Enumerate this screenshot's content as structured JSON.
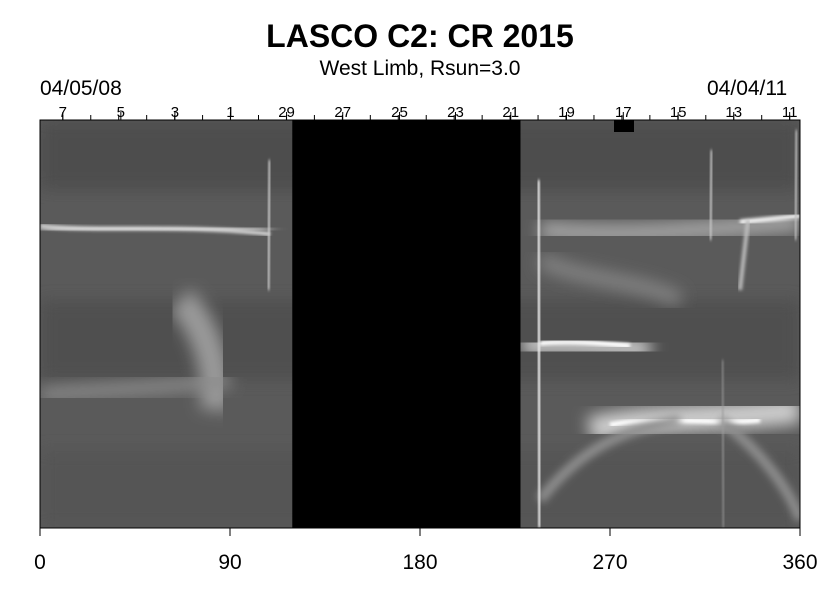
{
  "title": "LASCO C2: CR 2015",
  "subtitle": "West Limb, Rsun=3.0",
  "start_date": "04/05/08",
  "end_date": "04/04/11",
  "chart_data": {
    "type": "heatmap",
    "title": "LASCO C2: CR 2015",
    "subtitle": "West Limb, Rsun=3.0",
    "xlim": [
      0,
      360
    ],
    "x_ticks": [
      0,
      90,
      180,
      270,
      360
    ],
    "x_tick_labels": [
      "0",
      "90",
      "180",
      "270",
      "360"
    ],
    "top_axis": {
      "day_labels": [
        "7",
        "5",
        "3",
        "1",
        "29",
        "27",
        "25",
        "23",
        "21",
        "19",
        "17",
        "15",
        "13",
        "11"
      ],
      "label_x": [
        10.8,
        38.3,
        63.9,
        90.2,
        116.8,
        143.4,
        170.3,
        196.8,
        223.0,
        249.4,
        276.3,
        302.3,
        328.6,
        355.1
      ],
      "left_date": "04/05/08",
      "right_date": "04/04/11"
    },
    "data_gap": {
      "x_start": 119.5,
      "x_end": 227.6,
      "color": "#000000"
    },
    "colormap": "grayscale",
    "bright_features": [
      {
        "x_start": 0,
        "x_end": 110,
        "y_frac": 0.27
      },
      {
        "x_start": 210,
        "x_end": 345,
        "y_frac": 0.55
      },
      {
        "x_start": 270,
        "x_end": 360,
        "y_frac": 0.77
      },
      {
        "x_start": 232,
        "x_end": 360,
        "y_frac": 0.26
      }
    ],
    "grid": false
  }
}
